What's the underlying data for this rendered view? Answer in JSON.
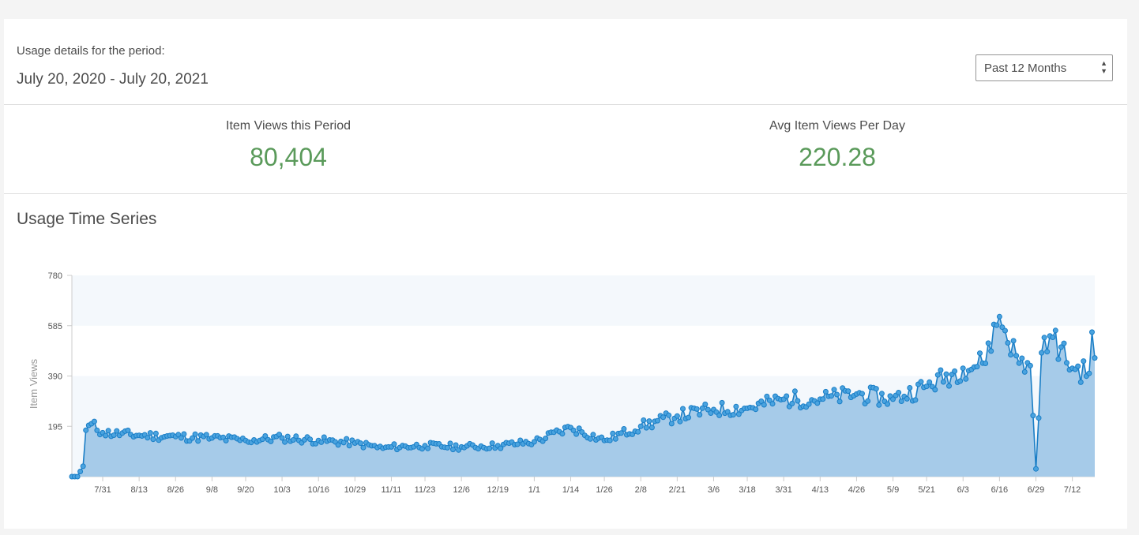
{
  "header": {
    "period_label": "Usage details for the period:",
    "period_value": "July 20, 2020 - July 20, 2021",
    "period_select": {
      "selected": "Past 12 Months"
    }
  },
  "stats": {
    "views": {
      "label": "Item Views this Period",
      "value": "80,404"
    },
    "avg": {
      "label": "Avg Item Views Per Day",
      "value": "220.28"
    }
  },
  "section_title": "Usage Time Series",
  "colors": {
    "line": "#1a7ec6",
    "area": "#a6cbe9",
    "band": "#f4f8fc",
    "stat_value": "#5a9a5a"
  },
  "chart_data": {
    "type": "area",
    "title": "",
    "xlabel": "",
    "ylabel": "Item Views",
    "ylim": [
      0,
      780
    ],
    "yticks": [
      "195",
      "390",
      "585",
      "780"
    ],
    "xtick_labels": [
      "7/31",
      "8/13",
      "8/26",
      "9/8",
      "9/20",
      "10/3",
      "10/16",
      "10/29",
      "11/11",
      "11/23",
      "12/6",
      "12/19",
      "1/1",
      "1/14",
      "1/26",
      "2/8",
      "2/21",
      "3/6",
      "3/18",
      "3/31",
      "4/13",
      "4/26",
      "5/9",
      "5/21",
      "6/3",
      "6/16",
      "6/29",
      "7/12"
    ],
    "x_start": "7/20/2020",
    "x_end": "7/20/2021",
    "anchors": [
      {
        "d": "7/20",
        "v": 0
      },
      {
        "d": "7/22",
        "v": 0
      },
      {
        "d": "7/24",
        "v": 40
      },
      {
        "d": "7/25",
        "v": 180
      },
      {
        "d": "7/27",
        "v": 205
      },
      {
        "d": "7/31",
        "v": 170
      },
      {
        "d": "8/13",
        "v": 160
      },
      {
        "d": "8/26",
        "v": 155
      },
      {
        "d": "9/8",
        "v": 150
      },
      {
        "d": "9/20",
        "v": 140
      },
      {
        "d": "10/3",
        "v": 150
      },
      {
        "d": "10/16",
        "v": 140
      },
      {
        "d": "10/29",
        "v": 130
      },
      {
        "d": "11/8",
        "v": 110
      },
      {
        "d": "11/11",
        "v": 115
      },
      {
        "d": "11/23",
        "v": 120
      },
      {
        "d": "12/6",
        "v": 115
      },
      {
        "d": "12/19",
        "v": 120
      },
      {
        "d": "1/1",
        "v": 135
      },
      {
        "d": "1/14",
        "v": 190
      },
      {
        "d": "1/26",
        "v": 140
      },
      {
        "d": "2/8",
        "v": 195
      },
      {
        "d": "2/21",
        "v": 235
      },
      {
        "d": "3/6",
        "v": 260
      },
      {
        "d": "3/18",
        "v": 265
      },
      {
        "d": "3/31",
        "v": 300
      },
      {
        "d": "4/13",
        "v": 300
      },
      {
        "d": "4/26",
        "v": 320
      },
      {
        "d": "5/9",
        "v": 300
      },
      {
        "d": "5/21",
        "v": 350
      },
      {
        "d": "6/3",
        "v": 420
      },
      {
        "d": "6/10",
        "v": 440
      },
      {
        "d": "6/16",
        "v": 620
      },
      {
        "d": "6/23",
        "v": 440
      },
      {
        "d": "6/27",
        "v": 430
      },
      {
        "d": "6/29",
        "v": 30
      },
      {
        "d": "7/1",
        "v": 480
      },
      {
        "d": "7/5",
        "v": 540
      },
      {
        "d": "7/12",
        "v": 420
      },
      {
        "d": "7/18",
        "v": 400
      },
      {
        "d": "7/19",
        "v": 560
      },
      {
        "d": "7/20",
        "v": 460
      }
    ]
  }
}
